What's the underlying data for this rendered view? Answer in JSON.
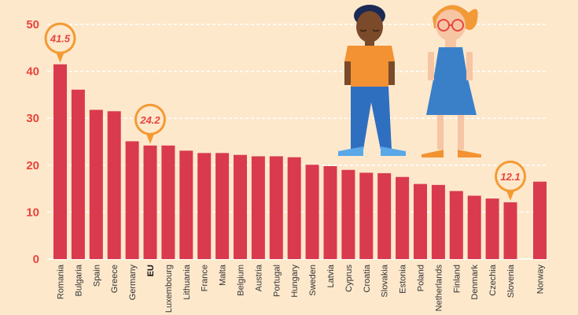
{
  "colors": {
    "background": "#fde8cc",
    "bar": "#d93a4e",
    "tick": "#e8453c",
    "callout": "#f49a33",
    "callout_text": "#e8453c",
    "grid": "#ffffff"
  },
  "chart_data": {
    "type": "bar",
    "categories": [
      "Romania",
      "Bulgaria",
      "Spain",
      "Greece",
      "Germany",
      "EU",
      "Luxembourg",
      "Lithuania",
      "France",
      "Malta",
      "Belgium",
      "Austria",
      "Portugal",
      "Hungary",
      "Sweden",
      "Latvia",
      "Cyprus",
      "Croatia",
      "Slovakia",
      "Estonia",
      "Poland",
      "Netherlands",
      "Finland",
      "Denmark",
      "Czechia",
      "Slovenia",
      "Norway"
    ],
    "values": [
      41.5,
      36.1,
      31.8,
      31.5,
      25.1,
      24.2,
      24.2,
      23.1,
      22.6,
      22.6,
      22.2,
      21.9,
      21.9,
      21.7,
      20.1,
      19.8,
      19.0,
      18.4,
      18.3,
      17.5,
      16.0,
      15.8,
      14.5,
      13.5,
      12.9,
      12.1,
      16.5
    ],
    "ylim": [
      0,
      50
    ],
    "yticks": [
      0,
      10,
      20,
      30,
      40,
      50
    ],
    "grid": true,
    "highlight": [
      "EU"
    ],
    "callouts": [
      {
        "category": "Romania",
        "label": "41.5"
      },
      {
        "category": "EU",
        "label": "24.2"
      },
      {
        "category": "Slovenia",
        "label": "12.1"
      }
    ],
    "title": "",
    "xlabel": "",
    "ylabel": ""
  },
  "illustration": {
    "figures": [
      "boy-figure",
      "girl-figure"
    ]
  }
}
